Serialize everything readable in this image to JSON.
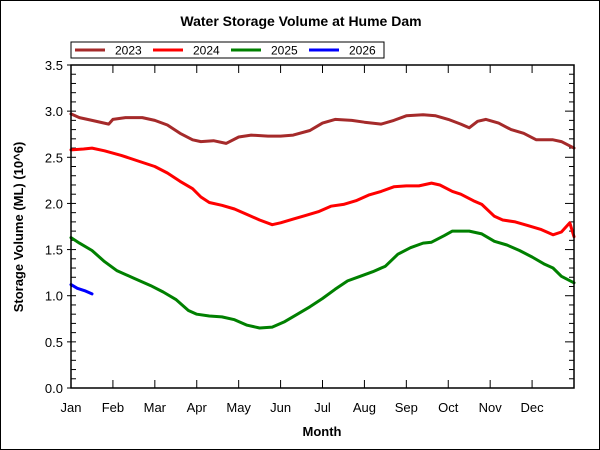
{
  "chart_data": {
    "type": "line",
    "title": "Water Storage Volume at Hume Dam",
    "xlabel": "Month",
    "ylabel": "Storage Volume (ML) (10^6)",
    "xlim": [
      0,
      12
    ],
    "ylim": [
      0,
      3.5
    ],
    "x_tick_labels": [
      "Jan",
      "Feb",
      "Mar",
      "Apr",
      "May",
      "Jun",
      "Jul",
      "Aug",
      "Sep",
      "Oct",
      "Nov",
      "Dec"
    ],
    "y_tick_labels": [
      "0.0",
      "0.5",
      "1.0",
      "1.5",
      "2.0",
      "2.5",
      "3.0",
      "3.5"
    ],
    "y_ticks": [
      0,
      0.5,
      1.0,
      1.5,
      2.0,
      2.5,
      3.0,
      3.5
    ],
    "grid": false,
    "legend_position": "top-left",
    "series": [
      {
        "name": "2023",
        "color": "#a52a2a",
        "x": [
          0,
          0.2,
          0.5,
          0.9,
          1.0,
          1.3,
          1.7,
          2.0,
          2.3,
          2.6,
          2.9,
          3.1,
          3.4,
          3.7,
          4.0,
          4.3,
          4.7,
          5.0,
          5.3,
          5.7,
          6.0,
          6.3,
          6.7,
          7.0,
          7.4,
          7.7,
          8.0,
          8.4,
          8.7,
          9.0,
          9.3,
          9.5,
          9.7,
          9.9,
          10.2,
          10.5,
          10.8,
          11.1,
          11.5,
          11.7,
          12.0
        ],
        "values": [
          2.97,
          2.93,
          2.9,
          2.86,
          2.91,
          2.93,
          2.93,
          2.9,
          2.85,
          2.76,
          2.69,
          2.67,
          2.68,
          2.65,
          2.72,
          2.74,
          2.73,
          2.73,
          2.74,
          2.79,
          2.87,
          2.91,
          2.9,
          2.88,
          2.86,
          2.9,
          2.95,
          2.96,
          2.95,
          2.91,
          2.86,
          2.82,
          2.89,
          2.91,
          2.87,
          2.8,
          2.76,
          2.69,
          2.69,
          2.67,
          2.6
        ]
      },
      {
        "name": "2024",
        "color": "#ff0000",
        "x": [
          0,
          0.3,
          0.5,
          0.8,
          1.2,
          1.6,
          2.0,
          2.3,
          2.6,
          2.9,
          3.1,
          3.3,
          3.6,
          3.9,
          4.2,
          4.5,
          4.8,
          5.0,
          5.3,
          5.6,
          5.9,
          6.2,
          6.5,
          6.8,
          7.1,
          7.4,
          7.7,
          8.0,
          8.3,
          8.6,
          8.8,
          9.1,
          9.3,
          9.6,
          9.8,
          10.1,
          10.3,
          10.6,
          10.9,
          11.2,
          11.5,
          11.7,
          11.9,
          12.0
        ],
        "values": [
          2.58,
          2.59,
          2.6,
          2.57,
          2.52,
          2.46,
          2.4,
          2.33,
          2.24,
          2.16,
          2.07,
          2.01,
          1.98,
          1.94,
          1.88,
          1.82,
          1.77,
          1.79,
          1.83,
          1.87,
          1.91,
          1.97,
          1.99,
          2.03,
          2.09,
          2.13,
          2.18,
          2.19,
          2.19,
          2.22,
          2.2,
          2.13,
          2.1,
          2.03,
          1.99,
          1.86,
          1.82,
          1.8,
          1.76,
          1.72,
          1.66,
          1.69,
          1.79,
          1.64
        ]
      },
      {
        "name": "2025",
        "color": "#008000",
        "x": [
          0,
          0.2,
          0.5,
          0.8,
          1.1,
          1.5,
          1.9,
          2.2,
          2.5,
          2.8,
          3.0,
          3.3,
          3.6,
          3.9,
          4.2,
          4.5,
          4.8,
          5.1,
          5.4,
          5.7,
          6.0,
          6.3,
          6.6,
          6.9,
          7.2,
          7.5,
          7.8,
          8.1,
          8.4,
          8.6,
          8.9,
          9.1,
          9.5,
          9.8,
          10.1,
          10.4,
          10.7,
          11.0,
          11.3,
          11.5,
          11.7,
          12.0
        ],
        "values": [
          1.63,
          1.57,
          1.49,
          1.37,
          1.27,
          1.19,
          1.11,
          1.04,
          0.96,
          0.84,
          0.8,
          0.78,
          0.77,
          0.74,
          0.68,
          0.65,
          0.66,
          0.72,
          0.8,
          0.88,
          0.97,
          1.07,
          1.16,
          1.21,
          1.26,
          1.32,
          1.45,
          1.52,
          1.57,
          1.58,
          1.65,
          1.7,
          1.7,
          1.67,
          1.59,
          1.55,
          1.49,
          1.42,
          1.34,
          1.3,
          1.21,
          1.14
        ]
      },
      {
        "name": "2026",
        "color": "#0000ff",
        "x": [
          0,
          0.15,
          0.35,
          0.5
        ],
        "values": [
          1.12,
          1.08,
          1.05,
          1.02
        ]
      }
    ]
  }
}
